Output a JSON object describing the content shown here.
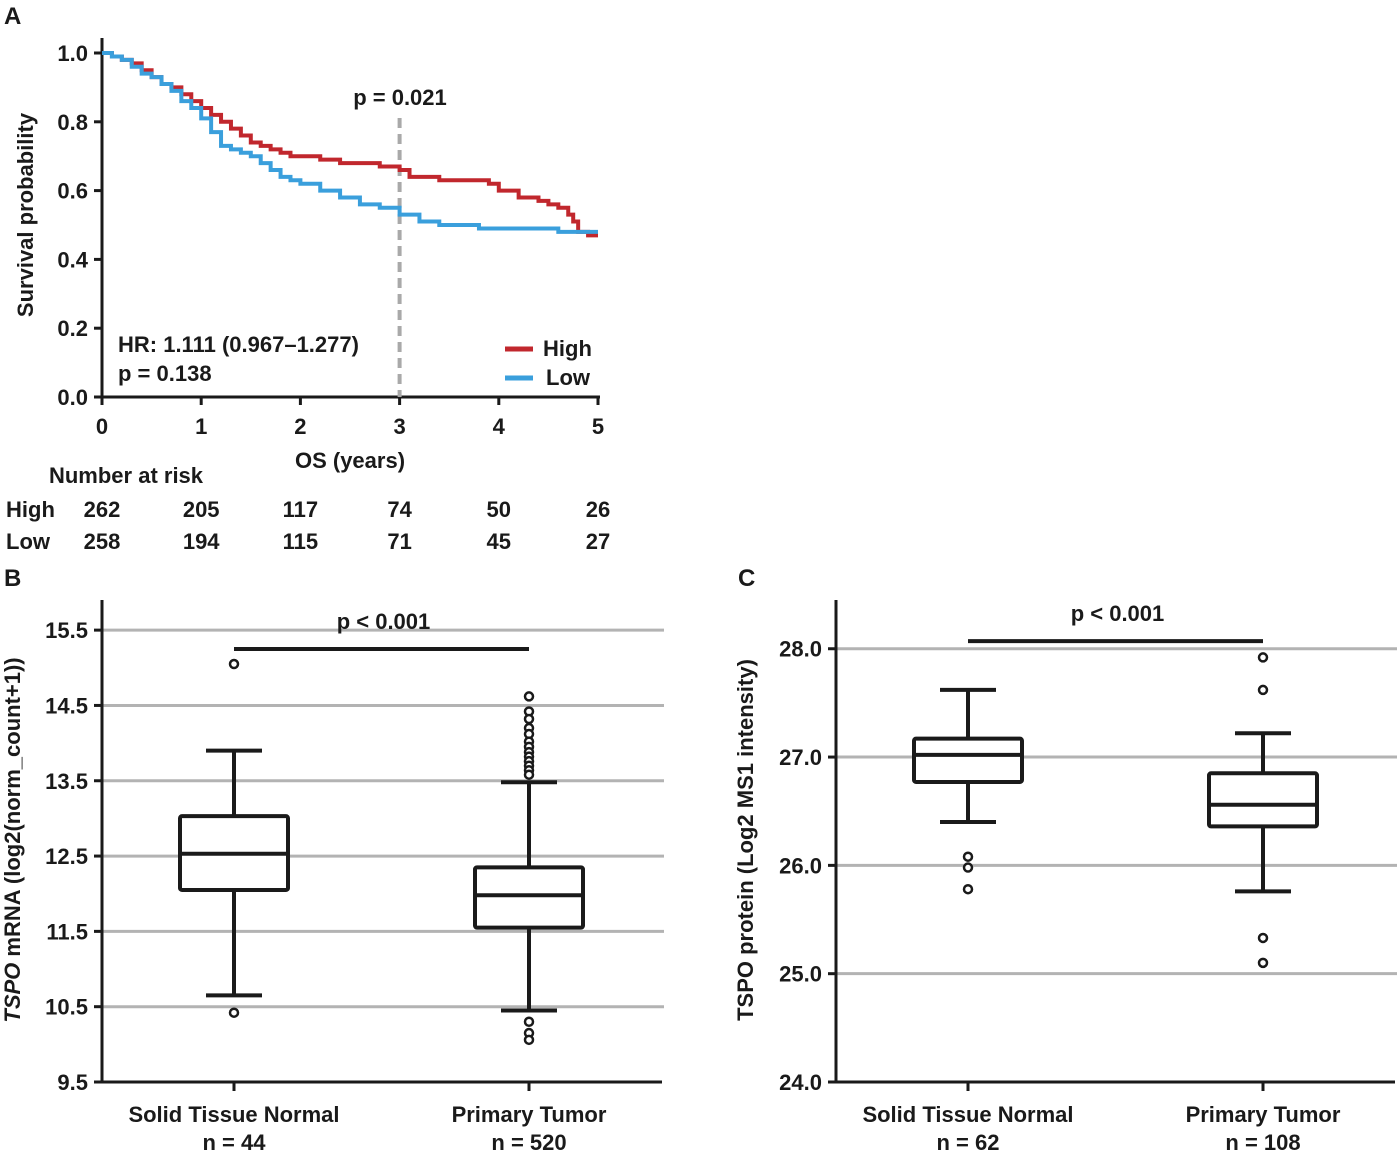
{
  "panels": {
    "A": {
      "label": "A"
    },
    "B": {
      "label": "B"
    },
    "C": {
      "label": "C"
    }
  },
  "chart_data": [
    {
      "panel": "A",
      "type": "line",
      "step": true,
      "title": "",
      "xlabel": "OS (years)",
      "ylabel": "Survival probability",
      "xlim": [
        0,
        5
      ],
      "ylim": [
        0,
        1.0
      ],
      "xticks": [
        0,
        1,
        2,
        3,
        4,
        5
      ],
      "xtick_labels": [
        "0",
        "1",
        "2",
        "3",
        "4",
        "5"
      ],
      "yticks": [
        0.0,
        0.2,
        0.4,
        0.6,
        0.8,
        1.0
      ],
      "ytick_labels": [
        "0.0",
        "0.2",
        "0.4",
        "0.6",
        "0.8",
        "1.0"
      ],
      "series": [
        {
          "name": "High",
          "color": "#c1272d",
          "x": [
            0,
            0.1,
            0.2,
            0.3,
            0.4,
            0.5,
            0.6,
            0.7,
            0.8,
            0.9,
            1.0,
            1.1,
            1.2,
            1.3,
            1.4,
            1.5,
            1.6,
            1.7,
            1.8,
            1.9,
            2.0,
            2.2,
            2.4,
            2.6,
            2.8,
            3.0,
            3.1,
            3.4,
            3.6,
            3.8,
            3.9,
            4.0,
            4.2,
            4.4,
            4.5,
            4.6,
            4.7,
            4.75,
            4.8,
            4.9,
            5.0
          ],
          "y": [
            1.0,
            0.99,
            0.98,
            0.97,
            0.95,
            0.93,
            0.91,
            0.9,
            0.88,
            0.86,
            0.84,
            0.82,
            0.8,
            0.78,
            0.76,
            0.74,
            0.73,
            0.72,
            0.71,
            0.7,
            0.7,
            0.69,
            0.68,
            0.68,
            0.67,
            0.66,
            0.64,
            0.63,
            0.63,
            0.63,
            0.62,
            0.6,
            0.58,
            0.57,
            0.56,
            0.55,
            0.53,
            0.51,
            0.48,
            0.47,
            0.47
          ]
        },
        {
          "name": "Low",
          "color": "#3a9fdc",
          "x": [
            0,
            0.1,
            0.2,
            0.3,
            0.4,
            0.5,
            0.6,
            0.7,
            0.8,
            0.9,
            1.0,
            1.1,
            1.2,
            1.3,
            1.4,
            1.5,
            1.6,
            1.7,
            1.8,
            1.9,
            2.0,
            2.2,
            2.4,
            2.6,
            2.8,
            3.0,
            3.2,
            3.4,
            3.6,
            3.8,
            4.0,
            4.2,
            4.4,
            4.6,
            4.8,
            5.0
          ],
          "y": [
            1.0,
            0.99,
            0.98,
            0.96,
            0.94,
            0.93,
            0.91,
            0.89,
            0.86,
            0.84,
            0.81,
            0.77,
            0.73,
            0.72,
            0.71,
            0.7,
            0.68,
            0.66,
            0.64,
            0.63,
            0.62,
            0.6,
            0.58,
            0.56,
            0.55,
            0.53,
            0.51,
            0.5,
            0.5,
            0.49,
            0.49,
            0.49,
            0.49,
            0.48,
            0.48,
            0.48
          ]
        }
      ],
      "reference_line": {
        "x": 3,
        "label": "p = 0.021",
        "color": "#a9a9a9"
      },
      "annotations": [
        "HR: 1.111 (0.967–1.277)",
        "p = 0.138"
      ],
      "legend": {
        "placement": "bottom-right",
        "entries": [
          "High",
          "Low"
        ]
      },
      "risk_table": {
        "title": "Number at risk",
        "timepoints": [
          0,
          1,
          2,
          3,
          4,
          5
        ],
        "rows": [
          {
            "name": "High",
            "values": [
              262,
              205,
              117,
              74,
              50,
              26
            ]
          },
          {
            "name": "Low",
            "values": [
              258,
              194,
              115,
              71,
              45,
              27
            ]
          }
        ]
      }
    },
    {
      "panel": "B",
      "type": "box",
      "title": "",
      "xlabel": "",
      "ylabel_italic": "TSPO",
      "ylabel_rest": " mRNA (log2(norm_count+1))",
      "ylim": [
        9.5,
        15.9
      ],
      "yticks": [
        9.5,
        10.5,
        11.5,
        12.5,
        13.5,
        14.5,
        15.5
      ],
      "ytick_labels": [
        "9.5",
        "10.5",
        "11.5",
        "12.5",
        "13.5",
        "14.5",
        "15.5"
      ],
      "gridlines": [
        10.5,
        11.5,
        12.5,
        13.5,
        14.5,
        15.5
      ],
      "categories": [
        "Solid Tissue Normal",
        "Primary Tumor"
      ],
      "n_labels": [
        "n = 44",
        "n = 520"
      ],
      "boxes": [
        {
          "whisker_low": 10.65,
          "q1": 12.05,
          "median": 12.53,
          "q3": 13.03,
          "whisker_high": 13.9,
          "outliers": [
            15.05,
            10.42
          ]
        },
        {
          "whisker_low": 10.45,
          "q1": 11.55,
          "median": 11.98,
          "q3": 12.35,
          "whisker_high": 13.48,
          "outliers": [
            14.62,
            14.42,
            14.32,
            14.2,
            14.12,
            14.02,
            13.95,
            13.88,
            13.82,
            13.76,
            13.7,
            13.64,
            13.58,
            10.3,
            10.15,
            10.06
          ]
        }
      ],
      "significance": {
        "label": "p < 0.001",
        "y": 15.25
      }
    },
    {
      "panel": "C",
      "type": "box",
      "title": "",
      "xlabel": "",
      "ylabel_italic": "",
      "ylabel_rest": "TSPO protein (Log2 MS1 intensity)",
      "ylim": [
        24.0,
        28.45
      ],
      "yticks": [
        24.0,
        25.0,
        26.0,
        27.0,
        28.0
      ],
      "ytick_labels": [
        "24.0",
        "25.0",
        "26.0",
        "27.0",
        "28.0"
      ],
      "gridlines": [
        25.0,
        26.0,
        27.0,
        28.0
      ],
      "categories": [
        "Solid Tissue Normal",
        "Primary Tumor"
      ],
      "n_labels": [
        "n = 62",
        "n = 108"
      ],
      "boxes": [
        {
          "whisker_low": 26.4,
          "q1": 26.77,
          "median": 27.02,
          "q3": 27.17,
          "whisker_high": 27.62,
          "outliers": [
            26.08,
            25.98,
            25.78
          ]
        },
        {
          "whisker_low": 25.76,
          "q1": 26.36,
          "median": 26.56,
          "q3": 26.85,
          "whisker_high": 27.22,
          "outliers": [
            27.92,
            27.62,
            25.33,
            25.1
          ]
        }
      ],
      "significance": {
        "label": "p < 0.001",
        "y": 28.07
      }
    }
  ]
}
